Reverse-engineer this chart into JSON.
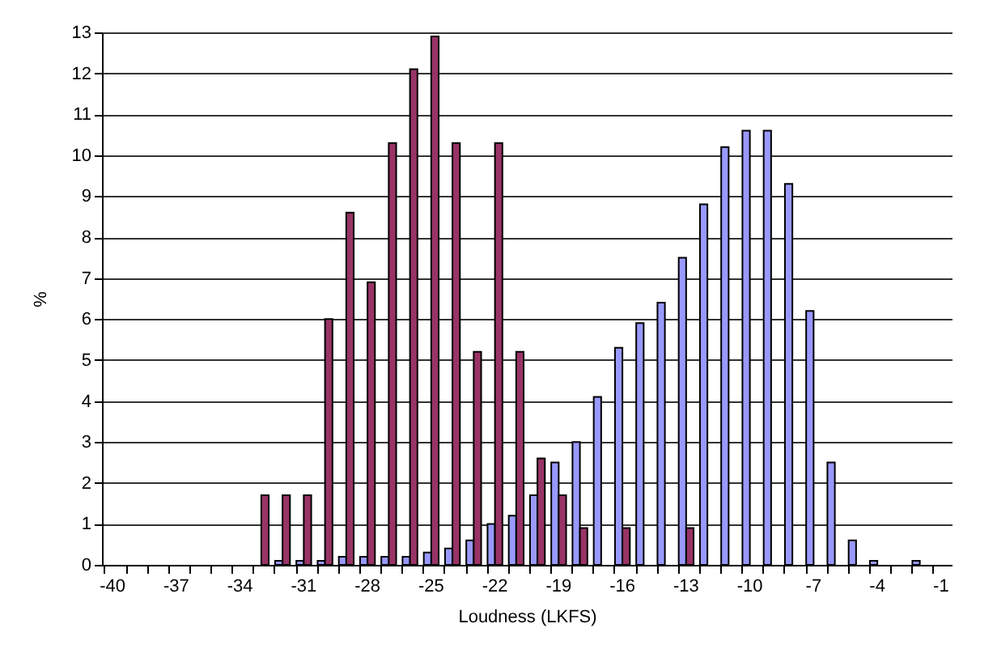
{
  "chart_data": {
    "type": "bar",
    "xlabel": "Loudness (LKFS)",
    "ylabel": "%",
    "categories": [
      "-40",
      null,
      null,
      "-37",
      null,
      null,
      "-34",
      null,
      null,
      "-31",
      null,
      null,
      "-28",
      null,
      null,
      "-25",
      null,
      null,
      "-22",
      null,
      null,
      "-19",
      null,
      null,
      "-16",
      null,
      null,
      "-13",
      null,
      null,
      "-10",
      null,
      null,
      "-7",
      null,
      null,
      "-4",
      null,
      null,
      "-1"
    ],
    "series": [
      {
        "color": "#9999ff",
        "values": [
          0,
          0,
          0,
          0,
          0,
          0,
          0,
          0,
          0.1,
          0.1,
          0.1,
          0.2,
          0.2,
          0.2,
          0.2,
          0.3,
          0.4,
          0.6,
          1.0,
          1.2,
          1.7,
          2.5,
          3.0,
          4.1,
          5.3,
          5.9,
          6.4,
          7.5,
          8.8,
          10.2,
          10.6,
          10.6,
          9.3,
          6.2,
          2.5,
          0.6,
          0.1,
          0,
          0.1,
          0
        ]
      },
      {
        "color": "#993366",
        "values": [
          0,
          0,
          0,
          0,
          0,
          0,
          0,
          1.7,
          1.7,
          1.7,
          6.0,
          8.6,
          6.9,
          10.3,
          12.1,
          12.9,
          10.3,
          5.2,
          10.3,
          5.2,
          2.6,
          1.7,
          0.9,
          0,
          0.9,
          0,
          0,
          0.9,
          0,
          0,
          0,
          0,
          0,
          0,
          0,
          0,
          0,
          0,
          0,
          0
        ]
      }
    ],
    "ylim": [
      0,
      13
    ],
    "yticks": [
      0,
      1,
      2,
      3,
      4,
      5,
      6,
      7,
      8,
      9,
      10,
      11,
      12,
      13
    ],
    "grid": "y"
  }
}
